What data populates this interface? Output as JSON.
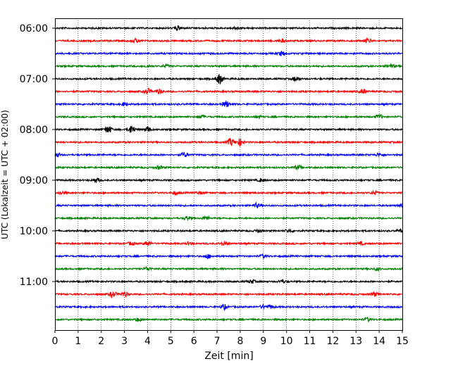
{
  "chart_data": {
    "type": "line",
    "title": "",
    "xlabel": "Zeit  [min]",
    "ylabel": "UTC (Lokalzeit = UTC + 02:00)",
    "xlim": [
      0,
      15
    ],
    "x_ticks": [
      "0",
      "1",
      "2",
      "3",
      "4",
      "5",
      "6",
      "7",
      "8",
      "9",
      "10",
      "11",
      "12",
      "13",
      "14",
      "15"
    ],
    "y_ticks": [
      "06:00",
      "07:00",
      "08:00",
      "09:00",
      "10:00",
      "11:00"
    ],
    "y_tick_rows": [
      0,
      4,
      8,
      12,
      16,
      20
    ],
    "grid": "vertical-dotted",
    "row_count": 24,
    "row_start": "06:00",
    "row_interval_minutes": 15,
    "colors": [
      "#000000",
      "#ff0000",
      "#0000ff",
      "#008000"
    ],
    "events": [
      {
        "row": 0,
        "at": [
          5.3,
          7.8
        ],
        "amp": [
          0.9,
          0.6
        ]
      },
      {
        "row": 1,
        "at": [
          3.5,
          9.8,
          13.5
        ],
        "amp": [
          0.8,
          0.6,
          1.0
        ]
      },
      {
        "row": 2,
        "at": [
          9.8
        ],
        "amp": [
          0.9
        ]
      },
      {
        "row": 3,
        "at": [
          4.0,
          4.8,
          14.5
        ],
        "amp": [
          0.6,
          0.6,
          0.9
        ]
      },
      {
        "row": 4,
        "at": [
          7.1,
          10.4
        ],
        "amp": [
          2.2,
          1.0
        ]
      },
      {
        "row": 5,
        "at": [
          4.0,
          4.5,
          13.3
        ],
        "amp": [
          1.2,
          0.9,
          1.0
        ]
      },
      {
        "row": 6,
        "at": [
          3.0,
          7.4
        ],
        "amp": [
          0.7,
          1.3
        ]
      },
      {
        "row": 7,
        "at": [
          6.3,
          8.8,
          14.0
        ],
        "amp": [
          0.6,
          0.6,
          0.9
        ]
      },
      {
        "row": 8,
        "at": [
          2.3,
          3.3,
          4.0
        ],
        "amp": [
          1.6,
          1.8,
          1.2
        ]
      },
      {
        "row": 9,
        "at": [
          7.6,
          8.0
        ],
        "amp": [
          1.6,
          1.4
        ]
      },
      {
        "row": 10,
        "at": [
          0.1,
          5.6,
          14.0
        ],
        "amp": [
          0.8,
          1.0,
          0.7
        ]
      },
      {
        "row": 11,
        "at": [
          4.5,
          10.5
        ],
        "amp": [
          0.7,
          0.9
        ]
      },
      {
        "row": 12,
        "at": [
          1.8,
          8.9
        ],
        "amp": [
          0.9,
          0.7
        ]
      },
      {
        "row": 13,
        "at": [
          0.3,
          5.2,
          6.2,
          13.8
        ],
        "amp": [
          0.7,
          0.7,
          0.6,
          0.7
        ]
      },
      {
        "row": 14,
        "at": [
          8.7,
          15.0
        ],
        "amp": [
          0.9,
          0.8
        ]
      },
      {
        "row": 15,
        "at": [
          5.7,
          6.5
        ],
        "amp": [
          0.7,
          0.9
        ]
      },
      {
        "row": 16,
        "at": [
          8.8,
          10.1,
          14.9
        ],
        "amp": [
          0.6,
          0.7,
          0.5
        ]
      },
      {
        "row": 17,
        "at": [
          3.3,
          4.0,
          5.8,
          7.3,
          13.2
        ],
        "amp": [
          0.7,
          1.0,
          0.6,
          0.9,
          0.6
        ]
      },
      {
        "row": 18,
        "at": [
          6.6,
          9.0
        ],
        "amp": [
          0.8,
          0.7
        ]
      },
      {
        "row": 19,
        "at": [
          4.0,
          13.9
        ],
        "amp": [
          0.8,
          0.6
        ]
      },
      {
        "row": 20,
        "at": [
          8.5,
          9.8
        ],
        "amp": [
          0.7,
          0.6
        ]
      },
      {
        "row": 21,
        "at": [
          2.5,
          3.0,
          13.8
        ],
        "amp": [
          1.2,
          1.1,
          0.8
        ]
      },
      {
        "row": 22,
        "at": [
          7.3,
          9.0,
          9.3
        ],
        "amp": [
          1.0,
          0.7,
          0.7
        ]
      },
      {
        "row": 23,
        "at": [
          3.6,
          13.5
        ],
        "amp": [
          0.7,
          0.7
        ]
      }
    ]
  }
}
